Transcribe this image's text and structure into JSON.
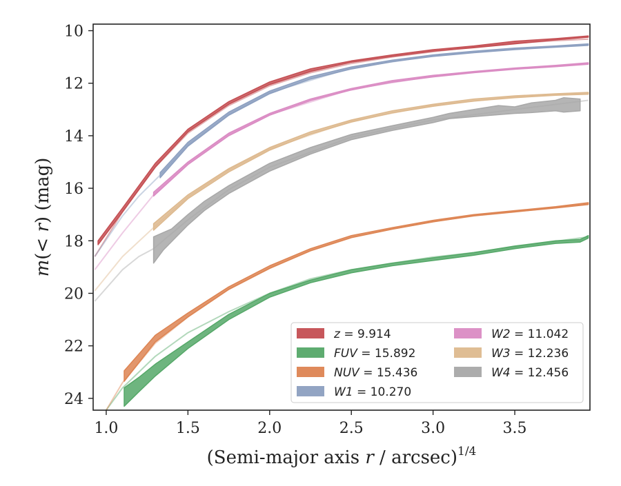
{
  "chart_data": {
    "type": "line",
    "xlabel": "(Semi-major axis r / arcsec)^1/4",
    "ylabel": "m(< r) (mag)",
    "xlim": [
      0.92,
      3.96
    ],
    "ylim": [
      24.45,
      9.75
    ],
    "y_inverted": true,
    "x_ticks": [
      1.0,
      1.5,
      2.0,
      2.5,
      3.0,
      3.5
    ],
    "x_tick_labels": [
      "1.0",
      "1.5",
      "2.0",
      "2.5",
      "3.0",
      "3.5"
    ],
    "y_ticks": [
      10,
      12,
      14,
      16,
      18,
      20,
      22,
      24
    ],
    "y_tick_labels": [
      "10",
      "12",
      "14",
      "16",
      "18",
      "20",
      "22",
      "24"
    ],
    "grid": false,
    "legend_position": "bottom-right",
    "legend_columns": 2,
    "series": [
      {
        "name": "z = 9.914",
        "color": "#c44e52",
        "upper": [
          [
            0.95,
            18.0
          ],
          [
            1.1,
            16.75
          ],
          [
            1.3,
            15.05
          ],
          [
            1.5,
            13.75
          ],
          [
            1.75,
            12.7
          ],
          [
            2.0,
            11.95
          ],
          [
            2.25,
            11.45
          ],
          [
            2.5,
            11.15
          ],
          [
            2.75,
            10.92
          ],
          [
            3.0,
            10.72
          ],
          [
            3.25,
            10.58
          ],
          [
            3.5,
            10.4
          ],
          [
            3.75,
            10.3
          ],
          [
            3.95,
            10.2
          ]
        ],
        "lower": [
          [
            0.95,
            18.15
          ],
          [
            1.1,
            16.9
          ],
          [
            1.3,
            15.2
          ],
          [
            1.5,
            13.85
          ],
          [
            1.75,
            12.8
          ],
          [
            2.0,
            12.05
          ],
          [
            2.25,
            11.55
          ],
          [
            2.5,
            11.2
          ],
          [
            2.75,
            10.98
          ],
          [
            3.0,
            10.78
          ],
          [
            3.25,
            10.65
          ],
          [
            3.5,
            10.5
          ],
          [
            3.75,
            10.35
          ],
          [
            3.95,
            10.25
          ]
        ],
        "inner": [
          [
            0.93,
            18.6
          ],
          [
            1.1,
            16.9
          ],
          [
            1.3,
            15.2
          ],
          [
            1.5,
            13.9
          ],
          [
            1.75,
            12.85
          ],
          [
            2.0,
            12.1
          ],
          [
            2.25,
            11.6
          ],
          [
            2.5,
            11.25
          ],
          [
            2.75,
            11.0
          ],
          [
            3.0,
            10.8
          ],
          [
            3.25,
            10.62
          ],
          [
            3.5,
            10.48
          ],
          [
            3.75,
            10.38
          ],
          [
            3.95,
            10.32
          ]
        ]
      },
      {
        "name": "FUV = 15.892",
        "color": "#55a868",
        "upper": [
          [
            1.11,
            23.6
          ],
          [
            1.2,
            23.2
          ],
          [
            1.3,
            22.7
          ],
          [
            1.5,
            21.85
          ],
          [
            1.75,
            20.8
          ],
          [
            2.0,
            20.0
          ],
          [
            2.25,
            19.5
          ],
          [
            2.5,
            19.1
          ],
          [
            2.75,
            18.85
          ],
          [
            3.0,
            18.65
          ],
          [
            3.25,
            18.45
          ],
          [
            3.5,
            18.2
          ],
          [
            3.75,
            18.0
          ],
          [
            3.9,
            17.95
          ],
          [
            3.95,
            17.8
          ]
        ],
        "lower": [
          [
            1.11,
            24.3
          ],
          [
            1.2,
            23.75
          ],
          [
            1.3,
            23.15
          ],
          [
            1.5,
            22.1
          ],
          [
            1.75,
            21.0
          ],
          [
            2.0,
            20.15
          ],
          [
            2.25,
            19.6
          ],
          [
            2.5,
            19.22
          ],
          [
            2.75,
            18.95
          ],
          [
            3.0,
            18.75
          ],
          [
            3.25,
            18.55
          ],
          [
            3.5,
            18.3
          ],
          [
            3.75,
            18.1
          ],
          [
            3.9,
            18.05
          ],
          [
            3.95,
            17.9
          ]
        ],
        "inner": [
          [
            1.0,
            24.45
          ],
          [
            1.1,
            23.6
          ],
          [
            1.3,
            22.4
          ],
          [
            1.5,
            21.5
          ],
          [
            1.75,
            20.7
          ],
          [
            2.0,
            20.0
          ],
          [
            2.25,
            19.45
          ],
          [
            2.5,
            19.1
          ],
          [
            2.75,
            18.85
          ],
          [
            3.0,
            18.62
          ],
          [
            3.25,
            18.45
          ],
          [
            3.5,
            18.22
          ],
          [
            3.75,
            18.02
          ],
          [
            3.95,
            17.85
          ]
        ]
      },
      {
        "name": "NUV = 15.436",
        "color": "#dd8452",
        "upper": [
          [
            1.11,
            22.95
          ],
          [
            1.3,
            21.6
          ],
          [
            1.5,
            20.75
          ],
          [
            1.75,
            19.75
          ],
          [
            2.0,
            18.95
          ],
          [
            2.25,
            18.3
          ],
          [
            2.5,
            17.8
          ],
          [
            2.75,
            17.5
          ],
          [
            3.0,
            17.22
          ],
          [
            3.25,
            17.0
          ],
          [
            3.5,
            16.85
          ],
          [
            3.75,
            16.7
          ],
          [
            3.95,
            16.55
          ]
        ],
        "lower": [
          [
            1.11,
            23.35
          ],
          [
            1.3,
            21.85
          ],
          [
            1.5,
            20.9
          ],
          [
            1.75,
            19.85
          ],
          [
            2.0,
            19.05
          ],
          [
            2.25,
            18.38
          ],
          [
            2.5,
            17.88
          ],
          [
            2.75,
            17.56
          ],
          [
            3.0,
            17.28
          ],
          [
            3.25,
            17.05
          ],
          [
            3.5,
            16.9
          ],
          [
            3.75,
            16.75
          ],
          [
            3.95,
            16.62
          ]
        ],
        "inner": [
          [
            1.0,
            24.45
          ],
          [
            1.1,
            23.4
          ],
          [
            1.3,
            21.9
          ],
          [
            1.5,
            20.9
          ],
          [
            1.75,
            19.85
          ],
          [
            2.0,
            19.05
          ],
          [
            2.25,
            18.38
          ],
          [
            2.5,
            17.88
          ],
          [
            2.75,
            17.55
          ],
          [
            3.0,
            17.27
          ],
          [
            3.25,
            17.05
          ],
          [
            3.5,
            16.9
          ],
          [
            3.75,
            16.73
          ],
          [
            3.95,
            16.6
          ]
        ]
      },
      {
        "name": "W1 = 10.270",
        "color": "#8c9fc0",
        "upper": [
          [
            1.33,
            15.4
          ],
          [
            1.5,
            14.25
          ],
          [
            1.75,
            13.1
          ],
          [
            2.0,
            12.3
          ],
          [
            2.25,
            11.75
          ],
          [
            2.5,
            11.38
          ],
          [
            2.75,
            11.12
          ],
          [
            3.0,
            10.92
          ],
          [
            3.25,
            10.78
          ],
          [
            3.5,
            10.66
          ],
          [
            3.75,
            10.58
          ],
          [
            3.95,
            10.5
          ]
        ],
        "lower": [
          [
            1.33,
            15.6
          ],
          [
            1.5,
            14.4
          ],
          [
            1.75,
            13.22
          ],
          [
            2.0,
            12.4
          ],
          [
            2.25,
            11.84
          ],
          [
            2.5,
            11.46
          ],
          [
            2.75,
            11.18
          ],
          [
            3.0,
            10.98
          ],
          [
            3.25,
            10.84
          ],
          [
            3.5,
            10.72
          ],
          [
            3.75,
            10.63
          ],
          [
            3.95,
            10.56
          ]
        ],
        "inner": [
          [
            0.93,
            18.6
          ],
          [
            1.1,
            17.05
          ],
          [
            1.2,
            16.3
          ],
          [
            1.33,
            15.5
          ],
          [
            1.5,
            14.35
          ],
          [
            1.75,
            13.18
          ],
          [
            2.0,
            12.36
          ],
          [
            2.5,
            11.42
          ],
          [
            3.0,
            10.95
          ],
          [
            3.5,
            10.7
          ],
          [
            3.95,
            10.53
          ]
        ]
      },
      {
        "name": "W2 = 11.042",
        "color": "#da8bc3",
        "upper": [
          [
            1.29,
            16.15
          ],
          [
            1.5,
            15.0
          ],
          [
            1.75,
            13.9
          ],
          [
            2.0,
            13.15
          ],
          [
            2.25,
            12.6
          ],
          [
            2.5,
            12.2
          ],
          [
            2.75,
            11.9
          ],
          [
            3.0,
            11.7
          ],
          [
            3.25,
            11.55
          ],
          [
            3.5,
            11.42
          ],
          [
            3.75,
            11.32
          ],
          [
            3.95,
            11.22
          ]
        ],
        "lower": [
          [
            1.29,
            16.3
          ],
          [
            1.5,
            15.1
          ],
          [
            1.75,
            14.0
          ],
          [
            2.0,
            13.22
          ],
          [
            2.25,
            12.66
          ],
          [
            2.5,
            12.26
          ],
          [
            2.75,
            11.96
          ],
          [
            3.0,
            11.76
          ],
          [
            3.25,
            11.6
          ],
          [
            3.5,
            11.47
          ],
          [
            3.75,
            11.37
          ],
          [
            3.95,
            11.28
          ]
        ],
        "inner": [
          [
            0.93,
            19.1
          ],
          [
            1.1,
            17.7
          ],
          [
            1.29,
            16.25
          ],
          [
            1.5,
            15.05
          ],
          [
            1.75,
            13.95
          ],
          [
            2.0,
            13.2
          ],
          [
            2.5,
            12.23
          ],
          [
            3.0,
            11.73
          ],
          [
            3.5,
            11.45
          ],
          [
            3.95,
            11.25
          ]
        ]
      },
      {
        "name": "W3 = 12.236",
        "color": "#ddb98e",
        "upper": [
          [
            1.29,
            17.35
          ],
          [
            1.5,
            16.25
          ],
          [
            1.75,
            15.25
          ],
          [
            2.0,
            14.45
          ],
          [
            2.25,
            13.85
          ],
          [
            2.5,
            13.4
          ],
          [
            2.75,
            13.05
          ],
          [
            3.0,
            12.8
          ],
          [
            3.25,
            12.6
          ],
          [
            3.5,
            12.48
          ],
          [
            3.75,
            12.4
          ],
          [
            3.95,
            12.35
          ]
        ],
        "lower": [
          [
            1.29,
            17.6
          ],
          [
            1.5,
            16.4
          ],
          [
            1.75,
            15.38
          ],
          [
            2.0,
            14.55
          ],
          [
            2.25,
            13.94
          ],
          [
            2.5,
            13.48
          ],
          [
            2.75,
            13.13
          ],
          [
            3.0,
            12.88
          ],
          [
            3.25,
            12.68
          ],
          [
            3.5,
            12.55
          ],
          [
            3.75,
            12.46
          ],
          [
            3.95,
            12.42
          ]
        ],
        "inner": [
          [
            0.93,
            19.9
          ],
          [
            1.1,
            18.6
          ],
          [
            1.29,
            17.5
          ],
          [
            1.5,
            16.33
          ],
          [
            1.75,
            15.3
          ],
          [
            2.0,
            14.5
          ],
          [
            2.5,
            13.44
          ],
          [
            3.0,
            12.84
          ],
          [
            3.5,
            12.52
          ],
          [
            3.95,
            12.38
          ]
        ]
      },
      {
        "name": "W4 = 12.456",
        "color": "#a8a8a8",
        "upper": [
          [
            1.29,
            17.85
          ],
          [
            1.4,
            17.55
          ],
          [
            1.5,
            17.0
          ],
          [
            1.6,
            16.5
          ],
          [
            1.75,
            15.9
          ],
          [
            2.0,
            15.05
          ],
          [
            2.25,
            14.45
          ],
          [
            2.5,
            13.95
          ],
          [
            2.75,
            13.62
          ],
          [
            3.0,
            13.3
          ],
          [
            3.1,
            13.15
          ],
          [
            3.3,
            12.95
          ],
          [
            3.4,
            12.85
          ],
          [
            3.5,
            12.9
          ],
          [
            3.6,
            12.75
          ],
          [
            3.75,
            12.65
          ],
          [
            3.8,
            12.55
          ],
          [
            3.9,
            12.6
          ]
        ],
        "lower": [
          [
            1.29,
            18.85
          ],
          [
            1.35,
            18.35
          ],
          [
            1.5,
            17.4
          ],
          [
            1.6,
            16.85
          ],
          [
            1.75,
            16.2
          ],
          [
            2.0,
            15.35
          ],
          [
            2.25,
            14.7
          ],
          [
            2.5,
            14.15
          ],
          [
            2.75,
            13.8
          ],
          [
            3.0,
            13.5
          ],
          [
            3.1,
            13.35
          ],
          [
            3.3,
            13.25
          ],
          [
            3.4,
            13.2
          ],
          [
            3.5,
            13.15
          ],
          [
            3.6,
            13.12
          ],
          [
            3.75,
            13.05
          ],
          [
            3.8,
            13.1
          ],
          [
            3.9,
            13.05
          ]
        ],
        "inner": [
          [
            0.93,
            20.3
          ],
          [
            1.1,
            19.1
          ],
          [
            1.2,
            18.6
          ],
          [
            1.29,
            18.3
          ],
          [
            1.5,
            17.2
          ],
          [
            1.75,
            16.05
          ],
          [
            2.0,
            15.2
          ],
          [
            2.5,
            14.05
          ],
          [
            3.0,
            13.4
          ],
          [
            3.5,
            13.0
          ],
          [
            3.95,
            12.65
          ]
        ]
      }
    ]
  }
}
